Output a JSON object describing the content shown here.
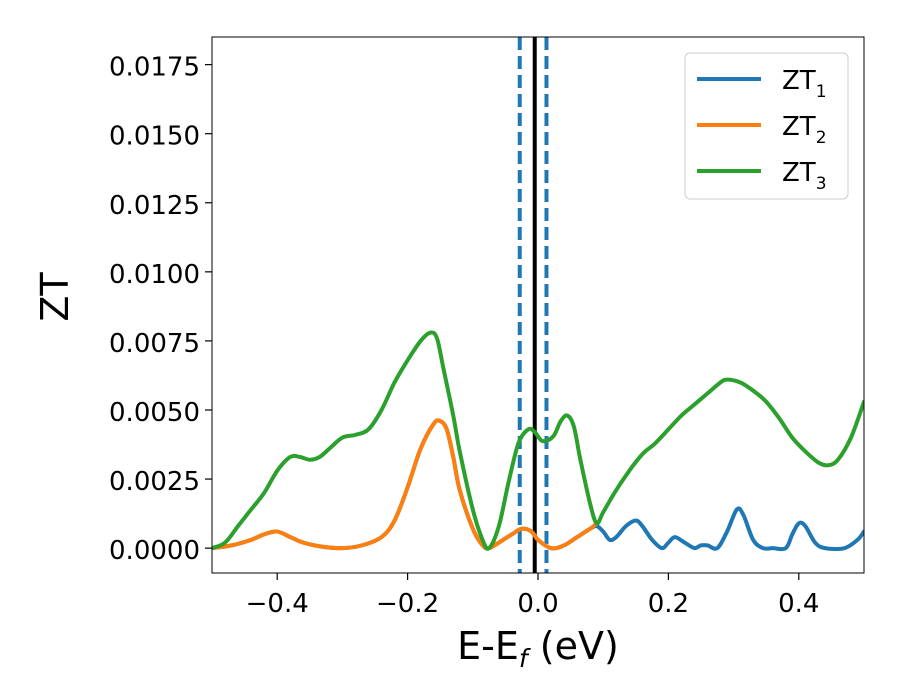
{
  "chart_data": {
    "type": "line",
    "title": "",
    "xlabel": "E-E",
    "xlabel_sub": "f",
    "xlabel_unit": " (eV)",
    "ylabel": "ZT",
    "xlim": [
      -0.5,
      0.5
    ],
    "ylim": [
      -0.0009,
      0.0185
    ],
    "xticks": [
      -0.4,
      -0.2,
      0.0,
      0.2,
      0.4
    ],
    "xtick_labels": [
      "−0.4",
      "−0.2",
      "0.0",
      "0.2",
      "0.4"
    ],
    "yticks": [
      0.0,
      0.0025,
      0.005,
      0.0075,
      0.01,
      0.0125,
      0.015,
      0.0175
    ],
    "ytick_labels": [
      "0.0000",
      "0.0025",
      "0.0050",
      "0.0075",
      "0.0100",
      "0.0125",
      "0.0150",
      "0.0175"
    ],
    "grid": false,
    "legend_position": "top-right",
    "vlines": [
      {
        "x": -0.028,
        "style": "dashed",
        "color": "#1f77b4"
      },
      {
        "x": 0.013,
        "style": "dashed",
        "color": "#1f77b4"
      },
      {
        "x": -0.005,
        "style": "solid",
        "color": "#000000"
      }
    ],
    "series": [
      {
        "name": "ZT",
        "name_sub": "1",
        "color": "#1f77b4",
        "points": [
          [
            -0.5,
            0.0
          ],
          [
            -0.47,
            0.0001
          ],
          [
            -0.44,
            0.0003
          ],
          [
            -0.42,
            0.0005
          ],
          [
            -0.4,
            0.0006
          ],
          [
            -0.38,
            0.0004
          ],
          [
            -0.36,
            0.0002
          ],
          [
            -0.33,
            5e-05
          ],
          [
            -0.3,
            0.0
          ],
          [
            -0.27,
            0.0001
          ],
          [
            -0.24,
            0.0004
          ],
          [
            -0.22,
            0.001
          ],
          [
            -0.2,
            0.0022
          ],
          [
            -0.18,
            0.0036
          ],
          [
            -0.16,
            0.0045
          ],
          [
            -0.15,
            0.0046
          ],
          [
            -0.14,
            0.0043
          ],
          [
            -0.13,
            0.0033
          ],
          [
            -0.12,
            0.0021
          ],
          [
            -0.1,
            0.0007
          ],
          [
            -0.085,
            0.0001
          ],
          [
            -0.075,
            0.0
          ],
          [
            -0.06,
            0.0002
          ],
          [
            -0.04,
            0.0005
          ],
          [
            -0.025,
            0.0007
          ],
          [
            -0.01,
            0.0006
          ],
          [
            0.0,
            0.0003
          ],
          [
            0.02,
            0.0
          ],
          [
            0.04,
            0.0001
          ],
          [
            0.06,
            0.0004
          ],
          [
            0.08,
            0.0007
          ],
          [
            0.09,
            0.0008
          ],
          [
            0.1,
            0.0006
          ],
          [
            0.11,
            0.0003
          ],
          [
            0.12,
            0.0004
          ],
          [
            0.135,
            0.0008
          ],
          [
            0.15,
            0.001
          ],
          [
            0.16,
            0.0008
          ],
          [
            0.175,
            0.0003
          ],
          [
            0.19,
            0.0
          ],
          [
            0.2,
            0.0002
          ],
          [
            0.21,
            0.0004
          ],
          [
            0.225,
            0.0002
          ],
          [
            0.24,
            0.0
          ],
          [
            0.25,
            0.0001
          ],
          [
            0.26,
            0.0001
          ],
          [
            0.275,
            0.0
          ],
          [
            0.29,
            0.0006
          ],
          [
            0.305,
            0.0014
          ],
          [
            0.315,
            0.0012
          ],
          [
            0.33,
            0.0003
          ],
          [
            0.345,
            0.0
          ],
          [
            0.36,
            0.0
          ],
          [
            0.38,
            0.0
          ],
          [
            0.39,
            0.0005
          ],
          [
            0.4,
            0.0009
          ],
          [
            0.41,
            0.0008
          ],
          [
            0.425,
            0.0002
          ],
          [
            0.44,
            0.0
          ],
          [
            0.47,
            0.0
          ],
          [
            0.49,
            0.0003
          ],
          [
            0.5,
            0.0006
          ]
        ]
      },
      {
        "name": "ZT",
        "name_sub": "2",
        "color": "#ff7f0e",
        "points": [
          [
            -0.5,
            0.0
          ],
          [
            -0.47,
            0.0001
          ],
          [
            -0.44,
            0.0003
          ],
          [
            -0.42,
            0.0005
          ],
          [
            -0.4,
            0.0006
          ],
          [
            -0.38,
            0.0004
          ],
          [
            -0.36,
            0.0002
          ],
          [
            -0.33,
            5e-05
          ],
          [
            -0.3,
            0.0
          ],
          [
            -0.27,
            0.0001
          ],
          [
            -0.24,
            0.0004
          ],
          [
            -0.22,
            0.001
          ],
          [
            -0.2,
            0.0022
          ],
          [
            -0.18,
            0.0036
          ],
          [
            -0.16,
            0.0045
          ],
          [
            -0.15,
            0.0046
          ],
          [
            -0.14,
            0.0043
          ],
          [
            -0.13,
            0.0033
          ],
          [
            -0.12,
            0.0021
          ],
          [
            -0.1,
            0.0007
          ],
          [
            -0.085,
            0.0001
          ],
          [
            -0.075,
            0.0
          ],
          [
            -0.06,
            0.0002
          ],
          [
            -0.04,
            0.0005
          ],
          [
            -0.025,
            0.0007
          ],
          [
            -0.01,
            0.0006
          ],
          [
            0.0,
            0.0003
          ],
          [
            0.02,
            0.0
          ],
          [
            0.04,
            0.0001
          ],
          [
            0.06,
            0.0004
          ],
          [
            0.08,
            0.0007
          ],
          [
            0.09,
            0.0009
          ]
        ]
      },
      {
        "name": "ZT",
        "name_sub": "3",
        "color": "#2ca02c",
        "points": [
          [
            -0.5,
            0.0
          ],
          [
            -0.48,
            0.0002
          ],
          [
            -0.46,
            0.0008
          ],
          [
            -0.44,
            0.0014
          ],
          [
            -0.42,
            0.002
          ],
          [
            -0.4,
            0.0028
          ],
          [
            -0.38,
            0.0033
          ],
          [
            -0.365,
            0.0033
          ],
          [
            -0.35,
            0.0032
          ],
          [
            -0.335,
            0.0033
          ],
          [
            -0.32,
            0.0036
          ],
          [
            -0.3,
            0.004
          ],
          [
            -0.28,
            0.0041
          ],
          [
            -0.26,
            0.0043
          ],
          [
            -0.24,
            0.005
          ],
          [
            -0.22,
            0.006
          ],
          [
            -0.2,
            0.0068
          ],
          [
            -0.18,
            0.0075
          ],
          [
            -0.165,
            0.0078
          ],
          [
            -0.155,
            0.0076
          ],
          [
            -0.145,
            0.0065
          ],
          [
            -0.13,
            0.0048
          ],
          [
            -0.12,
            0.0035
          ],
          [
            -0.1,
            0.0014
          ],
          [
            -0.085,
            0.0003
          ],
          [
            -0.075,
            0.0
          ],
          [
            -0.06,
            0.0008
          ],
          [
            -0.045,
            0.0024
          ],
          [
            -0.03,
            0.0038
          ],
          [
            -0.015,
            0.0043
          ],
          [
            -0.005,
            0.0042
          ],
          [
            0.005,
            0.0039
          ],
          [
            0.015,
            0.0039
          ],
          [
            0.025,
            0.0041
          ],
          [
            0.035,
            0.0046
          ],
          [
            0.045,
            0.0048
          ],
          [
            0.055,
            0.0044
          ],
          [
            0.065,
            0.0032
          ],
          [
            0.08,
            0.0016
          ],
          [
            0.09,
            0.0009
          ],
          [
            0.1,
            0.0013
          ],
          [
            0.12,
            0.0021
          ],
          [
            0.14,
            0.0028
          ],
          [
            0.16,
            0.0034
          ],
          [
            0.18,
            0.0038
          ],
          [
            0.2,
            0.0043
          ],
          [
            0.22,
            0.0048
          ],
          [
            0.24,
            0.0052
          ],
          [
            0.26,
            0.0056
          ],
          [
            0.28,
            0.006
          ],
          [
            0.29,
            0.0061
          ],
          [
            0.31,
            0.006
          ],
          [
            0.33,
            0.0057
          ],
          [
            0.35,
            0.0053
          ],
          [
            0.37,
            0.0047
          ],
          [
            0.39,
            0.004
          ],
          [
            0.41,
            0.0035
          ],
          [
            0.43,
            0.0031
          ],
          [
            0.445,
            0.003
          ],
          [
            0.46,
            0.0032
          ],
          [
            0.48,
            0.004
          ],
          [
            0.5,
            0.0053
          ]
        ]
      }
    ]
  }
}
